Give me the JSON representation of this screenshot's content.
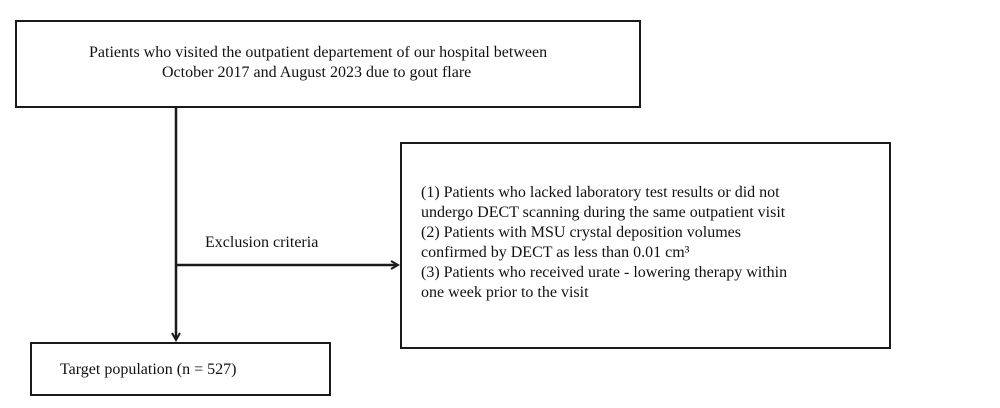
{
  "boxes": {
    "source": {
      "lines": [
        "Patients who visited the outpatient departement of our hospital between",
        "October 2017 and August 2023 due to gout flare"
      ]
    },
    "exclusion": {
      "lines": [
        "(1) Patients who lacked laboratory test results or did not",
        "undergo DECT scanning during the same outpatient visit",
        "(2) Patients with MSU crystal deposition volumes",
        "confirmed by DECT as less than 0.01 cm³",
        "(3) Patients who received urate - lowering therapy within",
        "one week prior to the visit"
      ]
    },
    "target": {
      "label": "Target population (n = 527)"
    }
  },
  "edge_labels": {
    "exclusion": "Exclusion criteria"
  },
  "colors": {
    "stroke": "#1a1a1a",
    "background": "#ffffff"
  }
}
